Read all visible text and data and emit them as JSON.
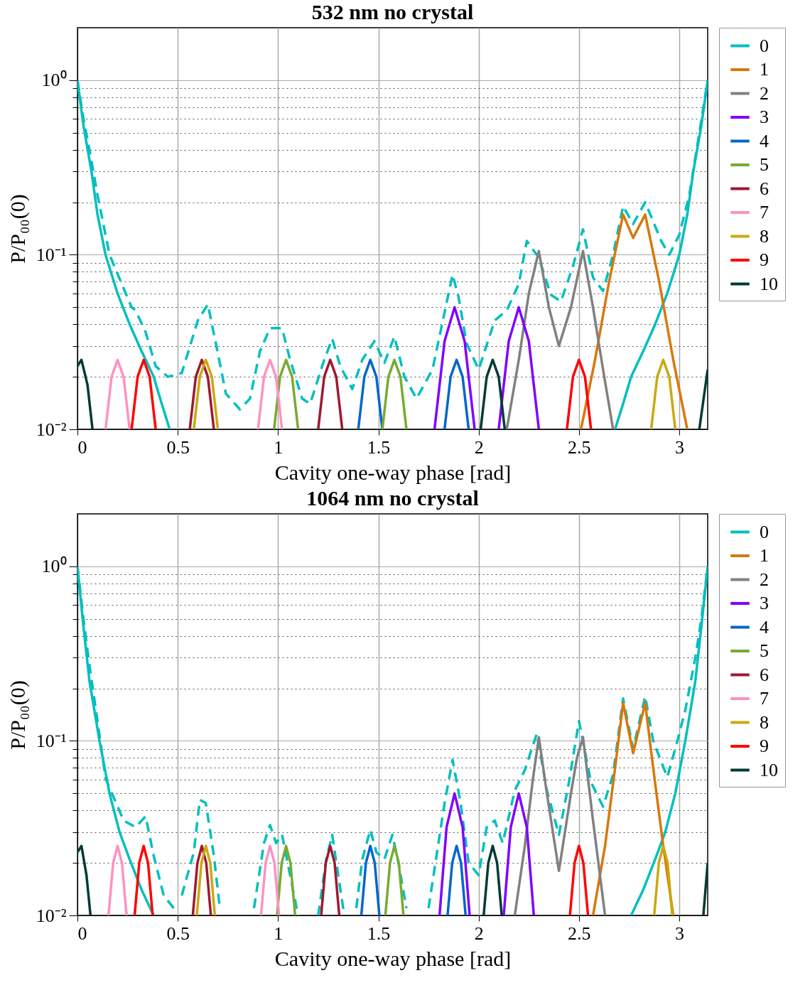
{
  "chart_data": [
    {
      "type": "line",
      "title": "532 nm no crystal",
      "xlabel": "Cavity one-way phase [rad]",
      "ylabel": "P/P₀₀(0)",
      "log": "y",
      "grid": true,
      "legend": "right",
      "xlim": [
        0,
        3.1416
      ],
      "xticks": [
        0,
        0.5,
        1,
        1.5,
        2,
        2.5,
        3
      ],
      "ylim": [
        0.01,
        2
      ],
      "yticks": [
        {
          "value": 0.01,
          "label": "10⁻²"
        },
        {
          "value": 0.02,
          "label": null
        },
        {
          "value": 0.03,
          "label": null
        },
        {
          "value": 0.04,
          "label": null
        },
        {
          "value": 0.05,
          "label": null
        },
        {
          "value": 0.06,
          "label": null
        },
        {
          "value": 0.07,
          "label": null
        },
        {
          "value": 0.08,
          "label": null
        },
        {
          "value": 0.09,
          "label": null
        },
        {
          "value": 0.1,
          "label": "10⁻¹"
        },
        {
          "value": 0.2,
          "label": null
        },
        {
          "value": 0.3,
          "label": null
        },
        {
          "value": 0.4,
          "label": null
        },
        {
          "value": 0.5,
          "label": null
        },
        {
          "value": 0.6,
          "label": null
        },
        {
          "value": 0.7,
          "label": null
        },
        {
          "value": 0.8,
          "label": null
        },
        {
          "value": 0.9,
          "label": null
        },
        {
          "value": 1,
          "label": "10⁰"
        }
      ],
      "series": [
        {
          "color": "#00bfbf",
          "line_style": "dashed",
          "x": [
            0,
            0.03,
            0.06,
            0.1,
            0.16,
            0.27,
            0.29,
            0.34,
            0.39,
            0.45,
            0.52,
            0.6,
            0.65,
            0.69,
            0.74,
            0.81,
            0.86,
            0.91,
            0.96,
            1.02,
            1.06,
            1.12,
            1.16,
            1.23,
            1.27,
            1.31,
            1.37,
            1.42,
            1.48,
            1.53,
            1.58,
            1.63,
            1.69,
            1.77,
            1.84,
            1.87,
            1.9,
            1.94,
            2.0,
            2.08,
            2.14,
            2.2,
            2.24,
            2.3,
            2.36,
            2.41,
            2.47,
            2.52,
            2.57,
            2.62,
            2.67,
            2.72,
            2.77,
            2.83,
            2.91,
            2.95,
            3.0,
            3.05,
            3.1,
            3.1416
          ],
          "values": [
            1,
            0.6,
            0.4,
            0.22,
            0.1,
            0.05,
            0.048,
            0.036,
            0.023,
            0.02,
            0.021,
            0.042,
            0.052,
            0.031,
            0.016,
            0.013,
            0.015,
            0.028,
            0.038,
            0.038,
            0.025,
            0.015,
            0.014,
            0.025,
            0.033,
            0.023,
            0.017,
            0.025,
            0.032,
            0.024,
            0.034,
            0.02,
            0.015,
            0.022,
            0.053,
            0.077,
            0.057,
            0.031,
            0.022,
            0.042,
            0.048,
            0.068,
            0.12,
            0.096,
            0.059,
            0.054,
            0.086,
            0.14,
            0.074,
            0.062,
            0.1,
            0.19,
            0.15,
            0.2,
            0.12,
            0.1,
            0.13,
            0.22,
            0.5,
            1
          ]
        },
        {
          "name": "0",
          "color": "#00bfbf",
          "x": [
            0,
            0.03,
            0.07,
            0.1,
            0.14,
            0.2,
            0.26,
            0.32,
            0.38,
            0.42,
            0.46,
            1.57,
            2.68,
            2.72,
            2.76,
            2.82,
            2.88,
            2.94,
            3.0,
            3.04,
            3.07,
            3.11,
            3.1416
          ],
          "values": [
            1,
            0.55,
            0.3,
            0.17,
            0.1,
            0.06,
            0.04,
            0.028,
            0.02,
            0.014,
            0.01,
            null,
            0.01,
            0.014,
            0.02,
            0.028,
            0.04,
            0.06,
            0.1,
            0.17,
            0.3,
            0.55,
            1
          ]
        },
        {
          "name": "1",
          "color": "#d9770b",
          "x": [
            2.51,
            2.58,
            2.65,
            2.72,
            2.77,
            2.83,
            2.9,
            2.97,
            3.04
          ],
          "values": [
            0.01,
            0.025,
            0.07,
            0.17,
            0.125,
            0.17,
            0.07,
            0.025,
            0.01
          ]
        },
        {
          "name": "2",
          "color": "#808080",
          "x": [
            2.14,
            2.2,
            2.25,
            2.3,
            2.35,
            2.4,
            2.46,
            2.52,
            2.57,
            2.62,
            2.67
          ],
          "values": [
            0.01,
            0.025,
            0.06,
            0.105,
            0.05,
            0.03,
            0.05,
            0.105,
            0.05,
            0.022,
            0.01
          ]
        },
        {
          "name": "3",
          "color": "#8000ff",
          "x": [
            1.78,
            1.83,
            1.88,
            1.93,
            1.98,
            2.04,
            2.1,
            2.15,
            2.2,
            2.25,
            2.3
          ],
          "values": [
            0.01,
            0.032,
            0.05,
            0.032,
            0.01,
            null,
            0.01,
            0.032,
            0.05,
            0.032,
            0.01
          ]
        },
        {
          "name": "4",
          "color": "#0066cc",
          "x": [
            1.4,
            1.43,
            1.46,
            1.49,
            1.52,
            1.7,
            1.83,
            1.86,
            1.89,
            1.92,
            1.95
          ],
          "values": [
            0.01,
            0.02,
            0.025,
            0.02,
            0.01,
            null,
            0.01,
            0.02,
            0.025,
            0.02,
            0.01
          ]
        },
        {
          "name": "5",
          "color": "#77ab30",
          "x": [
            0.98,
            1.01,
            1.04,
            1.07,
            1.1,
            1.3,
            1.52,
            1.55,
            1.58,
            1.61,
            1.64
          ],
          "values": [
            0.01,
            0.02,
            0.025,
            0.02,
            0.01,
            null,
            0.01,
            0.02,
            0.025,
            0.02,
            0.01
          ]
        },
        {
          "name": "6",
          "color": "#a0182f",
          "x": [
            0.56,
            0.59,
            0.62,
            0.65,
            0.68,
            0.9,
            1.2,
            1.23,
            1.26,
            1.29,
            1.32
          ],
          "values": [
            0.01,
            0.02,
            0.025,
            0.02,
            0.01,
            null,
            0.01,
            0.02,
            0.025,
            0.02,
            0.01
          ]
        },
        {
          "name": "7",
          "color": "#ff91c0",
          "x": [
            0.14,
            0.17,
            0.2,
            0.23,
            0.26,
            0.6,
            0.9,
            0.93,
            0.96,
            0.99,
            1.02
          ],
          "values": [
            0.01,
            0.02,
            0.025,
            0.02,
            0.01,
            null,
            0.01,
            0.02,
            0.025,
            0.02,
            0.01
          ]
        },
        {
          "name": "8",
          "color": "#c9a90f",
          "x": [
            0.58,
            0.61,
            0.64,
            0.67,
            0.7,
            1.8,
            2.86,
            2.89,
            2.92,
            2.95,
            2.98
          ],
          "values": [
            0.01,
            0.02,
            0.025,
            0.02,
            0.01,
            null,
            0.01,
            0.02,
            0.025,
            0.02,
            0.01
          ]
        },
        {
          "name": "9",
          "color": "#ff0000",
          "x": [
            0.27,
            0.3,
            0.33,
            0.36,
            0.39,
            1.4,
            2.44,
            2.47,
            2.5,
            2.53,
            2.56
          ],
          "values": [
            0.01,
            0.02,
            0.025,
            0.02,
            0.01,
            null,
            0.01,
            0.02,
            0.025,
            0.02,
            0.01
          ]
        },
        {
          "name": "10",
          "color": "#003b35",
          "x": [
            0,
            0.02,
            0.05,
            0.075,
            1.0,
            2.01,
            2.04,
            2.07,
            2.1,
            2.13,
            2.6,
            3.1,
            3.1416
          ],
          "values": [
            0.023,
            0.025,
            0.018,
            0.01,
            null,
            0.01,
            0.02,
            0.025,
            0.02,
            0.01,
            null,
            0.01,
            0.022
          ]
        }
      ]
    },
    {
      "type": "line",
      "title": "1064 nm no crystal",
      "xlabel": "Cavity one-way phase [rad]",
      "ylabel": "P/P₀₀(0)",
      "log": "y",
      "grid": true,
      "legend": "right",
      "xlim": [
        0,
        3.1416
      ],
      "xticks": [
        0,
        0.5,
        1,
        1.5,
        2,
        2.5,
        3
      ],
      "ylim": [
        0.01,
        2
      ],
      "yticks": [
        {
          "value": 0.01,
          "label": "10⁻²"
        },
        {
          "value": 0.02,
          "label": null
        },
        {
          "value": 0.03,
          "label": null
        },
        {
          "value": 0.04,
          "label": null
        },
        {
          "value": 0.05,
          "label": null
        },
        {
          "value": 0.06,
          "label": null
        },
        {
          "value": 0.07,
          "label": null
        },
        {
          "value": 0.08,
          "label": null
        },
        {
          "value": 0.09,
          "label": null
        },
        {
          "value": 0.1,
          "label": "10⁻¹"
        },
        {
          "value": 0.2,
          "label": null
        },
        {
          "value": 0.3,
          "label": null
        },
        {
          "value": 0.4,
          "label": null
        },
        {
          "value": 0.5,
          "label": null
        },
        {
          "value": 0.6,
          "label": null
        },
        {
          "value": 0.7,
          "label": null
        },
        {
          "value": 0.8,
          "label": null
        },
        {
          "value": 0.9,
          "label": null
        },
        {
          "value": 1,
          "label": "10⁰"
        }
      ],
      "series": [
        {
          "color": "#00bfbf",
          "line_style": "dashed",
          "x": [
            0,
            0.03,
            0.06,
            0.1,
            0.14,
            0.23,
            0.29,
            0.34,
            0.38,
            0.43,
            0.48,
            0.5,
            0.52,
            0.58,
            0.61,
            0.64,
            0.68,
            0.71,
            0.8,
            0.88,
            0.93,
            0.96,
            0.99,
            1.02,
            1.06,
            1.1,
            1.15,
            1.2,
            1.24,
            1.27,
            1.3,
            1.33,
            1.36,
            1.39,
            1.42,
            1.46,
            1.49,
            1.53,
            1.57,
            1.6,
            1.64,
            1.7,
            1.75,
            1.83,
            1.87,
            1.91,
            1.95,
            2.0,
            2.04,
            2.08,
            2.12,
            2.18,
            2.23,
            2.29,
            2.34,
            2.4,
            2.45,
            2.5,
            2.56,
            2.62,
            2.67,
            2.72,
            2.77,
            2.83,
            2.87,
            2.94,
            2.98,
            3.03,
            3.08,
            3.11,
            3.1416
          ],
          "values": [
            1,
            0.5,
            0.27,
            0.13,
            0.061,
            0.035,
            0.032,
            0.037,
            0.022,
            0.013,
            0.011,
            null,
            0.013,
            0.023,
            0.046,
            0.044,
            0.022,
            0.011,
            null,
            0.011,
            0.026,
            0.033,
            0.026,
            0.029,
            0.017,
            0.01,
            null,
            0.01,
            0.021,
            0.029,
            0.017,
            0.01,
            null,
            0.011,
            0.021,
            0.031,
            0.023,
            0.021,
            0.029,
            0.02,
            0.011,
            null,
            0.011,
            0.044,
            0.078,
            0.044,
            0.02,
            0.017,
            0.032,
            0.035,
            0.026,
            0.052,
            0.068,
            0.11,
            0.052,
            0.029,
            0.058,
            0.13,
            0.058,
            0.042,
            0.064,
            0.175,
            0.09,
            0.18,
            0.1,
            0.062,
            0.09,
            0.15,
            0.3,
            0.5,
            1
          ]
        },
        {
          "name": "0",
          "color": "#00bfbf",
          "x": [
            0,
            0.03,
            0.06,
            0.11,
            0.16,
            0.21,
            0.26,
            0.32,
            0.38,
            1.57,
            2.76,
            2.82,
            2.88,
            2.93,
            2.98,
            3.03,
            3.08,
            3.11,
            3.1416
          ],
          "values": [
            1,
            0.45,
            0.22,
            0.1,
            0.05,
            0.03,
            0.021,
            0.014,
            0.01,
            null,
            0.01,
            0.014,
            0.021,
            0.03,
            0.05,
            0.1,
            0.22,
            0.45,
            1
          ]
        },
        {
          "name": "1",
          "color": "#d9770b",
          "x": [
            2.57,
            2.63,
            2.68,
            2.72,
            2.77,
            2.83,
            2.87,
            2.92,
            2.97
          ],
          "values": [
            0.01,
            0.025,
            0.07,
            0.165,
            0.085,
            0.165,
            0.07,
            0.025,
            0.01
          ]
        },
        {
          "name": "2",
          "color": "#808080",
          "x": [
            2.18,
            2.23,
            2.27,
            2.3,
            2.34,
            2.4,
            2.46,
            2.49,
            2.52,
            2.57,
            2.63
          ],
          "values": [
            0.01,
            0.025,
            0.06,
            0.105,
            0.05,
            0.018,
            0.05,
            0.08,
            0.105,
            0.035,
            0.01
          ]
        },
        {
          "name": "3",
          "color": "#8000ff",
          "x": [
            1.805,
            1.84,
            1.88,
            1.92,
            1.955,
            2.04,
            2.125,
            2.16,
            2.2,
            2.24,
            2.275
          ],
          "values": [
            0.01,
            0.032,
            0.05,
            0.032,
            0.01,
            null,
            0.01,
            0.032,
            0.05,
            0.032,
            0.01
          ]
        },
        {
          "name": "4",
          "color": "#0066cc",
          "x": [
            1.415,
            1.438,
            1.46,
            1.482,
            1.505,
            1.7,
            1.845,
            1.868,
            1.89,
            1.912,
            1.935
          ],
          "values": [
            0.01,
            0.02,
            0.025,
            0.02,
            0.01,
            null,
            0.01,
            0.02,
            0.025,
            0.02,
            0.01
          ]
        },
        {
          "name": "5",
          "color": "#77ab30",
          "x": [
            0.995,
            1.018,
            1.04,
            1.062,
            1.085,
            1.3,
            1.535,
            1.558,
            1.58,
            1.602,
            1.625
          ],
          "values": [
            0.01,
            0.02,
            0.025,
            0.02,
            0.01,
            null,
            0.01,
            0.02,
            0.025,
            0.02,
            0.01
          ]
        },
        {
          "name": "6",
          "color": "#a0182f",
          "x": [
            0.575,
            0.598,
            0.62,
            0.642,
            0.665,
            0.9,
            1.215,
            1.238,
            1.26,
            1.282,
            1.305
          ],
          "values": [
            0.01,
            0.02,
            0.025,
            0.02,
            0.01,
            null,
            0.01,
            0.02,
            0.025,
            0.02,
            0.01
          ]
        },
        {
          "name": "7",
          "color": "#ff91c0",
          "x": [
            0.155,
            0.178,
            0.2,
            0.222,
            0.245,
            0.6,
            0.915,
            0.938,
            0.96,
            0.982,
            1.005
          ],
          "values": [
            0.01,
            0.02,
            0.025,
            0.02,
            0.01,
            null,
            0.01,
            0.02,
            0.025,
            0.02,
            0.01
          ]
        },
        {
          "name": "8",
          "color": "#c9a90f",
          "x": [
            0.595,
            0.618,
            0.64,
            0.662,
            0.685,
            1.8,
            2.875,
            2.898,
            2.92,
            2.942,
            2.965
          ],
          "values": [
            0.01,
            0.02,
            0.025,
            0.02,
            0.01,
            null,
            0.01,
            0.02,
            0.025,
            0.02,
            0.01
          ]
        },
        {
          "name": "9",
          "color": "#ff0000",
          "x": [
            0.285,
            0.308,
            0.33,
            0.352,
            0.375,
            1.4,
            2.455,
            2.478,
            2.5,
            2.522,
            2.545
          ],
          "values": [
            0.01,
            0.02,
            0.025,
            0.02,
            0.01,
            null,
            0.01,
            0.02,
            0.025,
            0.02,
            0.01
          ]
        },
        {
          "name": "10",
          "color": "#003b35",
          "x": [
            0,
            0.02,
            0.045,
            0.065,
            1.0,
            2.025,
            2.048,
            2.07,
            2.092,
            2.115,
            2.6,
            3.12,
            3.1416
          ],
          "values": [
            0.023,
            0.025,
            0.017,
            0.01,
            null,
            0.01,
            0.02,
            0.025,
            0.02,
            0.01,
            null,
            0.01,
            0.02
          ]
        }
      ]
    }
  ]
}
